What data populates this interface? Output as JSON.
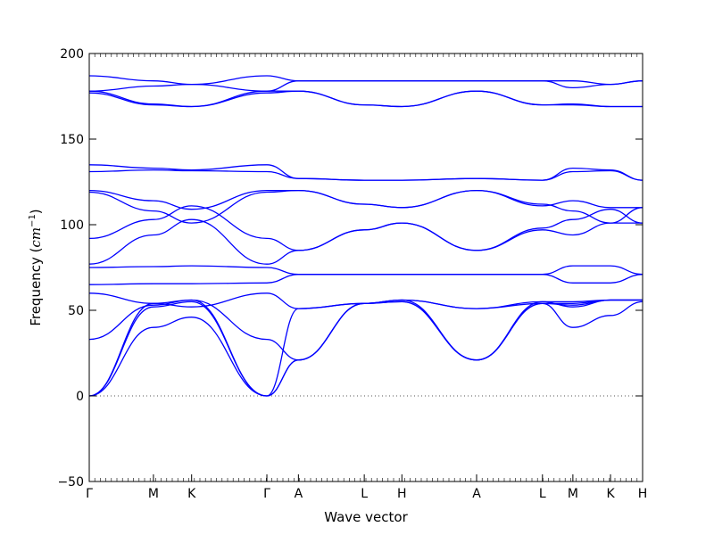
{
  "chart_data": {
    "type": "line",
    "title": "",
    "xlabel": "Wave vector",
    "ylabel_text": "Frequency (",
    "ylabel_math": "cm",
    "ylabel_exp": "−1",
    "ylabel_close": ")",
    "ylabel": "Frequency (cm^-1)",
    "ylim": [
      -50,
      200
    ],
    "yticks": [
      -50,
      0,
      50,
      100,
      150,
      200
    ],
    "ytick_labels": [
      "−50",
      "0",
      "50",
      "100",
      "150",
      "200"
    ],
    "xticks": [
      0,
      0.116,
      0.185,
      0.321,
      0.378,
      0.497,
      0.565,
      0.7,
      0.819,
      0.874,
      0.942,
      1.0
    ],
    "xtick_labels": [
      "Γ",
      "M",
      "K",
      "Γ",
      "A",
      "L",
      "H",
      "A",
      "L",
      "M",
      "K",
      "H"
    ],
    "zero_line": true,
    "line_color": "#0000ff",
    "zero_line_color": "#555555",
    "series": [
      {
        "x": [
          0,
          0.116,
          0.185,
          0.321,
          0.378,
          0.497,
          0.565,
          0.7,
          0.819,
          0.874,
          0.942,
          1.0
        ],
        "values": [
          0,
          52,
          55,
          0,
          51,
          54,
          56,
          51,
          54,
          40,
          47,
          55
        ]
      },
      {
        "x": [
          0,
          0.116,
          0.185,
          0.321,
          0.378,
          0.497,
          0.565,
          0.7,
          0.819,
          0.874,
          0.942,
          1.0
        ],
        "values": [
          0,
          54,
          56,
          0,
          21,
          54,
          55,
          21,
          55,
          52,
          56,
          56
        ]
      },
      {
        "x": [
          0,
          0.116,
          0.185,
          0.321,
          0.378,
          0.497,
          0.565,
          0.7,
          0.819,
          0.874,
          0.942,
          1.0
        ],
        "values": [
          0,
          40,
          46,
          0,
          21,
          54,
          55,
          21,
          54,
          54,
          56,
          56
        ]
      },
      {
        "x": [
          0,
          0.116,
          0.185,
          0.321,
          0.378,
          0.497,
          0.565,
          0.7,
          0.819,
          0.874,
          0.942,
          1.0
        ],
        "values": [
          33,
          53,
          56,
          33,
          21,
          54,
          56,
          21,
          54,
          53,
          56,
          56
        ]
      },
      {
        "x": [
          0,
          0.116,
          0.185,
          0.321,
          0.378,
          0.497,
          0.565,
          0.7,
          0.819,
          0.874,
          0.942,
          1.0
        ],
        "values": [
          60,
          54,
          52,
          60,
          51,
          54,
          56,
          51,
          55,
          55,
          56,
          56
        ]
      },
      {
        "x": [
          0,
          0.116,
          0.185,
          0.321,
          0.378,
          0.497,
          0.565,
          0.7,
          0.819,
          0.874,
          0.942,
          1.0
        ],
        "values": [
          65,
          65.5,
          65.5,
          66,
          71,
          71,
          71,
          71,
          71,
          66,
          66,
          71
        ]
      },
      {
        "x": [
          0,
          0.116,
          0.185,
          0.321,
          0.378,
          0.497,
          0.565,
          0.7,
          0.819,
          0.874,
          0.942,
          1.0
        ],
        "values": [
          75,
          75.5,
          76,
          75,
          71,
          71,
          71,
          71,
          71,
          76,
          76,
          71
        ]
      },
      {
        "x": [
          0,
          0.116,
          0.185,
          0.321,
          0.378,
          0.497,
          0.565,
          0.7,
          0.819,
          0.874,
          0.942,
          1.0
        ],
        "values": [
          77,
          94,
          103,
          77,
          85,
          97,
          101,
          85,
          97,
          94,
          101,
          101
        ]
      },
      {
        "x": [
          0,
          0.116,
          0.185,
          0.321,
          0.378,
          0.497,
          0.565,
          0.7,
          0.819,
          0.874,
          0.942,
          1.0
        ],
        "values": [
          92,
          103,
          111,
          92,
          85,
          97,
          101,
          85,
          98,
          103,
          109,
          101
        ]
      },
      {
        "x": [
          0,
          0.116,
          0.185,
          0.321,
          0.378,
          0.497,
          0.565,
          0.7,
          0.819,
          0.874,
          0.942,
          1.0
        ],
        "values": [
          119,
          108,
          101,
          119,
          120,
          112,
          110,
          120,
          112,
          108,
          101,
          110
        ]
      },
      {
        "x": [
          0,
          0.116,
          0.185,
          0.321,
          0.378,
          0.497,
          0.565,
          0.7,
          0.819,
          0.874,
          0.942,
          1.0
        ],
        "values": [
          120,
          114,
          109,
          120,
          120,
          112,
          110,
          120,
          111,
          114,
          110,
          110
        ]
      },
      {
        "x": [
          0,
          0.116,
          0.185,
          0.321,
          0.378,
          0.497,
          0.565,
          0.7,
          0.819,
          0.874,
          0.942,
          1.0
        ],
        "values": [
          131,
          132,
          131.5,
          131,
          127,
          126,
          126,
          127,
          126,
          131,
          131.5,
          126
        ]
      },
      {
        "x": [
          0,
          0.116,
          0.185,
          0.321,
          0.378,
          0.497,
          0.565,
          0.7,
          0.819,
          0.874,
          0.942,
          1.0
        ],
        "values": [
          135,
          133,
          132,
          135,
          127,
          126,
          126,
          127,
          126,
          133,
          132,
          126
        ]
      },
      {
        "x": [
          0,
          0.116,
          0.185,
          0.321,
          0.378,
          0.497,
          0.565,
          0.7,
          0.819,
          0.874,
          0.942,
          1.0
        ],
        "values": [
          177,
          170,
          169,
          177,
          178,
          170,
          169,
          178,
          170,
          170,
          169,
          169
        ]
      },
      {
        "x": [
          0,
          0.116,
          0.185,
          0.321,
          0.378,
          0.497,
          0.565,
          0.7,
          0.819,
          0.874,
          0.942,
          1.0
        ],
        "values": [
          178,
          170.5,
          169,
          178,
          178,
          170,
          169,
          178,
          170,
          170.5,
          169,
          169
        ]
      },
      {
        "x": [
          0,
          0.116,
          0.185,
          0.321,
          0.378,
          0.497,
          0.565,
          0.7,
          0.819,
          0.874,
          0.942,
          1.0
        ],
        "values": [
          178,
          181,
          182,
          178,
          184,
          184,
          184,
          184,
          184,
          180,
          182,
          184
        ]
      },
      {
        "x": [
          0,
          0.116,
          0.185,
          0.321,
          0.378,
          0.497,
          0.565,
          0.7,
          0.819,
          0.874,
          0.942,
          1.0
        ],
        "values": [
          187,
          184,
          182,
          187,
          184,
          184,
          184,
          184,
          184,
          184,
          182,
          184
        ]
      }
    ]
  }
}
